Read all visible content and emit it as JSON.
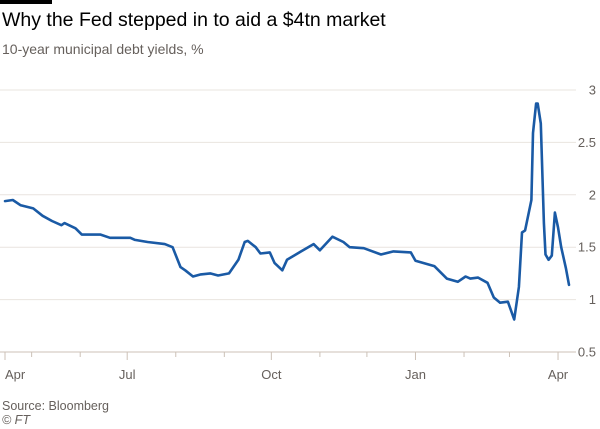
{
  "header": {
    "title": "Why the Fed stepped in to aid a $4tn market",
    "subtitle": "10-year municipal debt yields, %"
  },
  "footer": {
    "source": "Source: Bloomberg",
    "credit": "© FT"
  },
  "colors": {
    "line": "#1a5aa5",
    "grid": "#e9e4df",
    "text": "#66605c"
  },
  "chart_data": {
    "type": "line",
    "title": "Why the Fed stepped in to aid a $4tn market",
    "subtitle": "10-year municipal debt yields, %",
    "xlabel": "",
    "ylabel": "",
    "xlim": [
      "2019-04-14",
      "2020-04-08"
    ],
    "ylim": [
      0.5,
      3
    ],
    "yticks": [
      0.5,
      1,
      1.5,
      2,
      2.5,
      3
    ],
    "ytick_labels": [
      "0.5",
      "1",
      "1.5",
      "2",
      "2.5",
      "3"
    ],
    "xticks": [
      {
        "date": "2019-04-14",
        "label": "Apr"
      },
      {
        "date": "2019-07-01",
        "label": "Jul"
      },
      {
        "date": "2019-10-01",
        "label": "Oct"
      },
      {
        "date": "2020-01-01",
        "label": "Jan"
      },
      {
        "date": "2020-04-01",
        "label": "Apr"
      }
    ],
    "minor_xticks": [
      "2019-05-01",
      "2019-06-01",
      "2019-08-01",
      "2019-09-01",
      "2019-11-01",
      "2019-12-01",
      "2020-02-01",
      "2020-03-01"
    ],
    "grid": true,
    "y_axis_position": "right",
    "series": [
      {
        "x": [
          "2019-04-14",
          "2019-04-19",
          "2019-04-24",
          "2019-05-02",
          "2019-05-08",
          "2019-05-14",
          "2019-05-20",
          "2019-05-22",
          "2019-05-29",
          "2019-06-02",
          "2019-06-07",
          "2019-06-14",
          "2019-06-20",
          "2019-07-03",
          "2019-07-06",
          "2019-07-14",
          "2019-07-25",
          "2019-07-30",
          "2019-08-04",
          "2019-08-07",
          "2019-08-12",
          "2019-08-17",
          "2019-08-23",
          "2019-08-28",
          "2019-09-04",
          "2019-09-10",
          "2019-09-14",
          "2019-09-16",
          "2019-09-21",
          "2019-09-24",
          "2019-09-30",
          "2019-10-03",
          "2019-10-08",
          "2019-10-11",
          "2019-10-20",
          "2019-10-28",
          "2019-11-01",
          "2019-11-09",
          "2019-11-16",
          "2019-11-20",
          "2019-11-29",
          "2019-12-10",
          "2019-12-18",
          "2019-12-29",
          "2020-01-01",
          "2020-01-13",
          "2020-01-21",
          "2020-01-28",
          "2020-02-02",
          "2020-02-05",
          "2020-02-10",
          "2020-02-16",
          "2020-02-20",
          "2020-02-24",
          "2020-02-29",
          "2020-03-04",
          "2020-03-07",
          "2020-03-09",
          "2020-03-11",
          "2020-03-15",
          "2020-03-16",
          "2020-03-18",
          "2020-03-19",
          "2020-03-21",
          "2020-03-23",
          "2020-03-24",
          "2020-03-26",
          "2020-03-28",
          "2020-03-30",
          "2020-04-01",
          "2020-04-03",
          "2020-04-06",
          "2020-04-08"
        ],
        "y": [
          1.94,
          1.95,
          1.9,
          1.87,
          1.8,
          1.75,
          1.71,
          1.73,
          1.68,
          1.62,
          1.62,
          1.62,
          1.59,
          1.59,
          1.57,
          1.55,
          1.53,
          1.5,
          1.31,
          1.28,
          1.22,
          1.24,
          1.25,
          1.23,
          1.25,
          1.38,
          1.55,
          1.56,
          1.5,
          1.44,
          1.45,
          1.35,
          1.28,
          1.38,
          1.46,
          1.53,
          1.47,
          1.6,
          1.55,
          1.5,
          1.49,
          1.43,
          1.46,
          1.45,
          1.37,
          1.32,
          1.2,
          1.17,
          1.22,
          1.2,
          1.21,
          1.16,
          1.02,
          0.97,
          0.98,
          0.81,
          1.12,
          1.64,
          1.66,
          1.95,
          2.59,
          2.87,
          2.87,
          2.68,
          1.73,
          1.43,
          1.38,
          1.42,
          1.83,
          1.69,
          1.5,
          1.3,
          1.14
        ]
      }
    ]
  }
}
